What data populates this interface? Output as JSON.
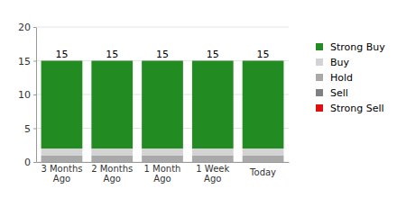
{
  "chart_data": {
    "type": "bar",
    "stacked": true,
    "grid": true,
    "legend": "right",
    "categories": [
      "3 Months Ago",
      "2 Months Ago",
      "1 Month Ago",
      "1 Week Ago",
      "Today"
    ],
    "series": [
      {
        "name": "Strong Buy",
        "color": "#228b22",
        "values": [
          13,
          13,
          13,
          13,
          13
        ]
      },
      {
        "name": "Buy",
        "color": "#d3d3d3",
        "values": [
          1,
          1,
          1,
          1,
          1
        ]
      },
      {
        "name": "Hold",
        "color": "#a9a9a9",
        "values": [
          1,
          1,
          1,
          1,
          1
        ]
      },
      {
        "name": "Sell",
        "color": "#808080",
        "values": [
          0,
          0,
          0,
          0,
          0
        ]
      },
      {
        "name": "Strong Sell",
        "color": "#dd1111",
        "values": [
          0,
          0,
          0,
          0,
          0
        ]
      }
    ],
    "totals": [
      15,
      15,
      15,
      15,
      15
    ],
    "ylim": [
      0,
      20
    ],
    "yticks": [
      0,
      5,
      10,
      15,
      20
    ]
  }
}
